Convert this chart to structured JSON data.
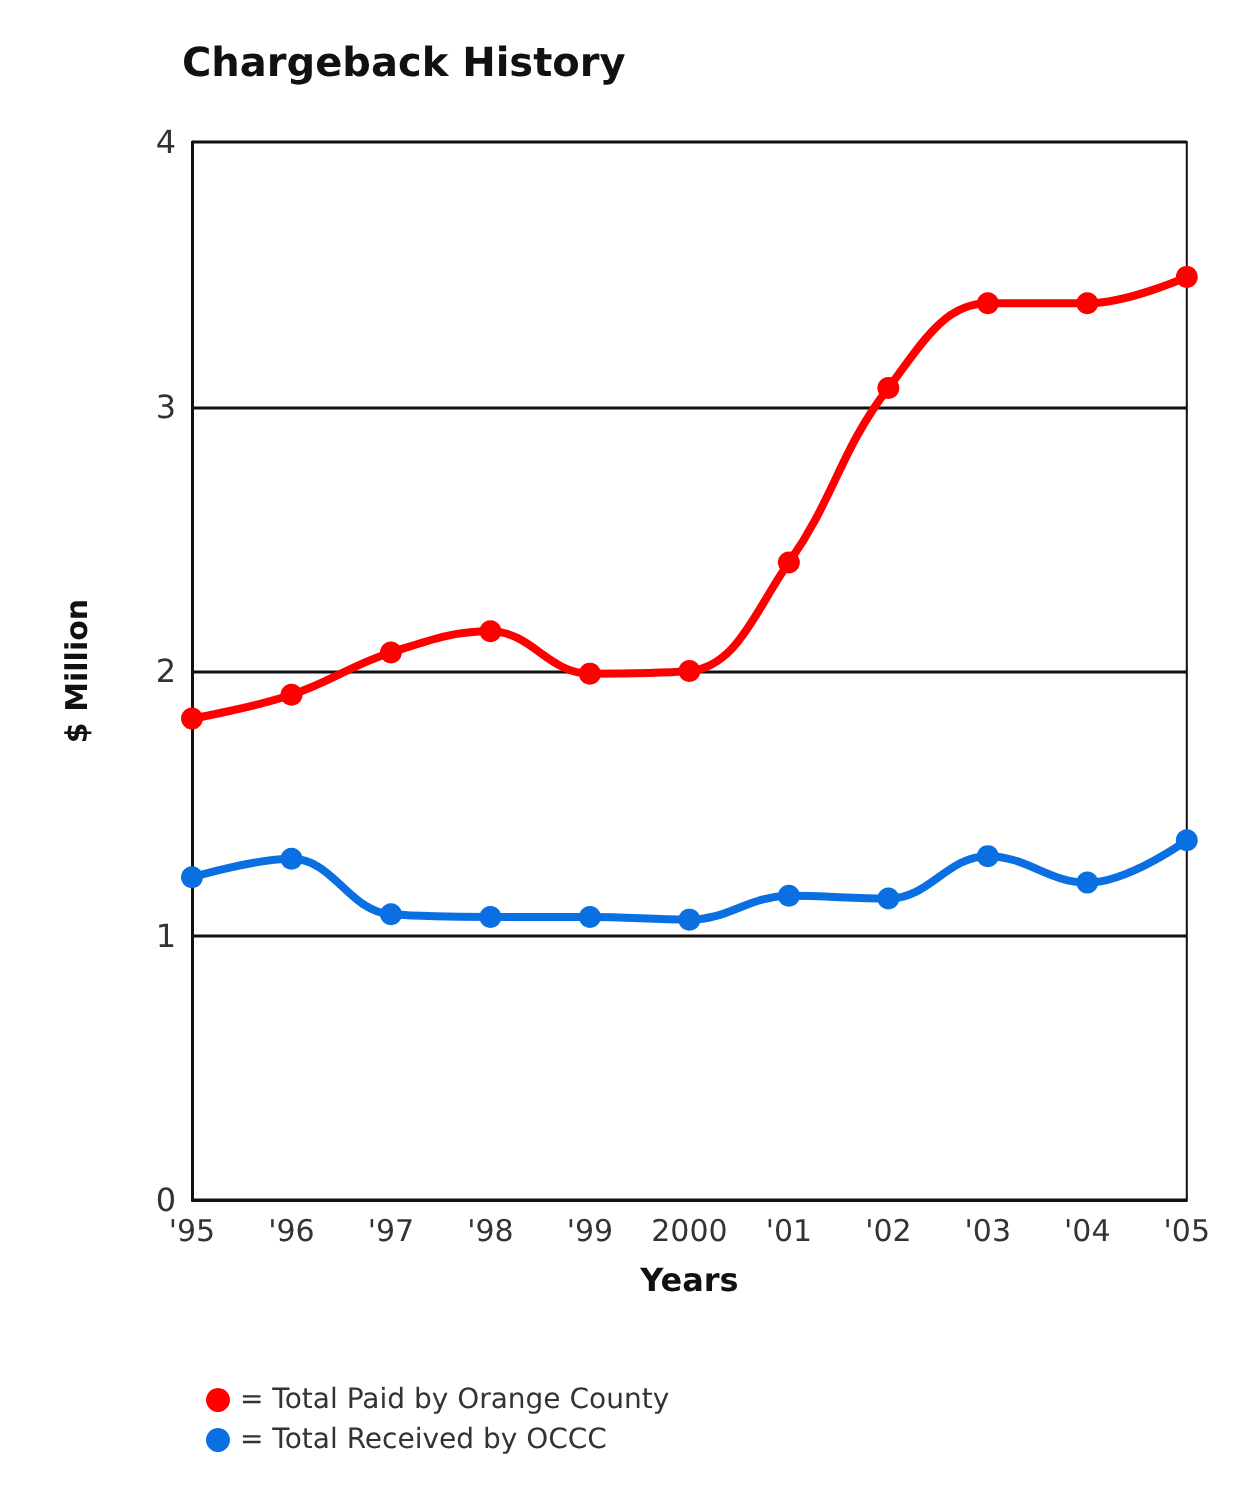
{
  "chart_data": {
    "type": "line",
    "title": "Chargeback History",
    "xlabel": "Years",
    "ylabel": "$ Million",
    "categories": [
      "'95",
      "'96",
      "'97",
      "'98",
      "'99",
      "2000",
      "'01",
      "'02",
      "'03",
      "'04",
      "'05"
    ],
    "series": [
      {
        "name": "= Total Paid by Orange County",
        "color": "#ff0000",
        "values": [
          1.82,
          1.91,
          2.07,
          2.15,
          1.99,
          2.0,
          2.41,
          3.07,
          3.39,
          3.39,
          3.49
        ]
      },
      {
        "name": "= Total Received by OCCC",
        "color": "#0a6fe0",
        "values": [
          1.22,
          1.29,
          1.08,
          1.07,
          1.07,
          1.06,
          1.15,
          1.14,
          1.3,
          1.2,
          1.36
        ]
      }
    ],
    "ylim": [
      0,
      4
    ],
    "yticks": [
      0,
      1,
      2,
      3,
      4
    ],
    "grid": "y",
    "legend": "bottom",
    "marker": "circle",
    "line_style": "solid"
  }
}
